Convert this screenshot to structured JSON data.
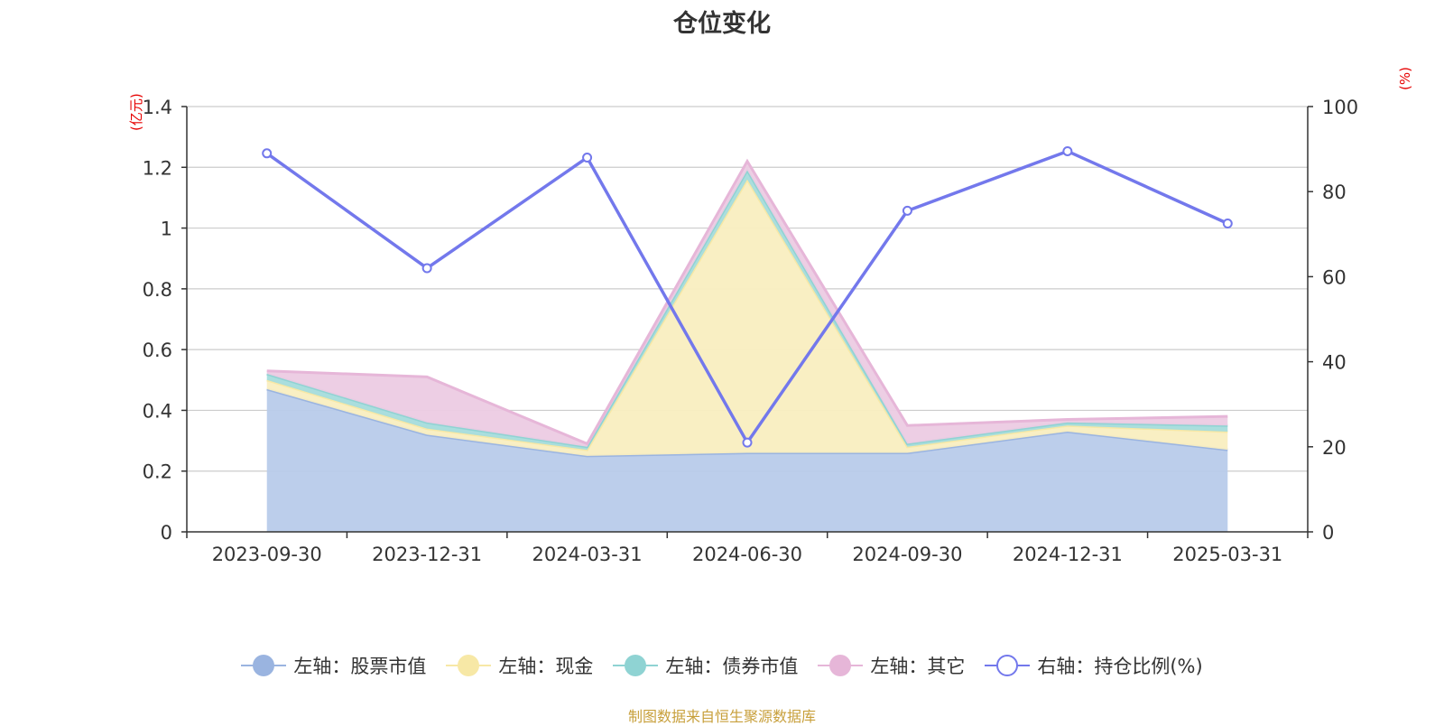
{
  "chart_data": {
    "type": "area",
    "title": "仓位变化",
    "categories": [
      "2023-09-30",
      "2023-12-31",
      "2024-03-31",
      "2024-06-30",
      "2024-09-30",
      "2024-12-31",
      "2025-03-31"
    ],
    "left_axis": {
      "unit": "(亿元)",
      "ylim": [
        0,
        1.4
      ],
      "ticks": [
        "0",
        "0.2",
        "0.4",
        "0.6",
        "0.8",
        "1",
        "1.2",
        "1.4"
      ]
    },
    "right_axis": {
      "unit": "(%)",
      "ylim": [
        0,
        100
      ],
      "ticks": [
        "0",
        "20",
        "40",
        "60",
        "80",
        "100"
      ]
    },
    "series": [
      {
        "name": "左轴：股票市值",
        "axis": "left",
        "stacked": true,
        "color": "#9ab4e0",
        "fill": "#b8cbea",
        "values": [
          0.47,
          0.32,
          0.25,
          0.26,
          0.26,
          0.33,
          0.27
        ]
      },
      {
        "name": "左轴：现金",
        "axis": "left",
        "stacked": true,
        "color": "#f7e8a6",
        "fill": "#f9eec0",
        "values": [
          0.03,
          0.02,
          0.02,
          0.9,
          0.02,
          0.02,
          0.06
        ]
      },
      {
        "name": "左轴：债券市值",
        "axis": "left",
        "stacked": true,
        "color": "#8fd3d3",
        "fill": "#a5dcdc",
        "values": [
          0.02,
          0.02,
          0.01,
          0.03,
          0.01,
          0.01,
          0.02
        ]
      },
      {
        "name": "左轴：其它",
        "axis": "left",
        "stacked": true,
        "color": "#e6b6d8",
        "fill": "#eccbe3",
        "values": [
          0.01,
          0.15,
          0.01,
          0.03,
          0.06,
          0.01,
          0.03
        ]
      },
      {
        "name": "右轴：持仓比例(%)",
        "axis": "right",
        "stacked": false,
        "color": "#7378ec",
        "values": [
          89.0,
          62.0,
          88.0,
          21.0,
          75.5,
          89.5,
          72.5
        ]
      }
    ],
    "grid": true,
    "legend_position": "bottom"
  },
  "source_note": "制图数据来自恒生聚源数据库"
}
